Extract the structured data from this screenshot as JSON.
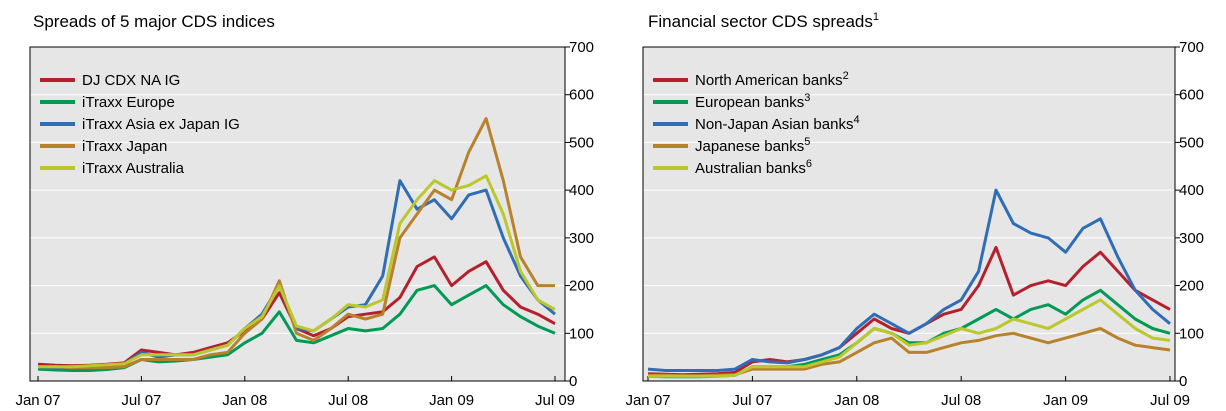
{
  "chart_data": [
    {
      "type": "line",
      "title": "Spreads of 5 major CDS indices",
      "x": [
        "2007-01",
        "2007-02",
        "2007-03",
        "2007-04",
        "2007-05",
        "2007-06",
        "2007-07",
        "2007-08",
        "2007-09",
        "2007-10",
        "2007-11",
        "2007-12",
        "2008-01",
        "2008-02",
        "2008-03",
        "2008-04",
        "2008-05",
        "2008-06",
        "2008-07",
        "2008-08",
        "2008-09",
        "2008-10",
        "2008-11",
        "2008-12",
        "2009-01",
        "2009-02",
        "2009-03",
        "2009-04",
        "2009-05",
        "2009-06",
        "2009-07"
      ],
      "xticks": [
        {
          "value": "2007-01",
          "label": "Jan 07"
        },
        {
          "value": "2007-07",
          "label": "Jul 07"
        },
        {
          "value": "2008-01",
          "label": "Jan 08"
        },
        {
          "value": "2008-07",
          "label": "Jul 08"
        },
        {
          "value": "2009-01",
          "label": "Jan 09"
        },
        {
          "value": "2009-07",
          "label": "Jul 09"
        }
      ],
      "ylim": [
        0,
        700
      ],
      "yticks": [
        0,
        100,
        200,
        300,
        400,
        500,
        600,
        700
      ],
      "grid": true,
      "legend": "upper left",
      "series": [
        {
          "name": "DJ CDX NA IG",
          "color": "#b5202e",
          "values": [
            35,
            33,
            32,
            33,
            35,
            38,
            65,
            60,
            55,
            60,
            70,
            80,
            105,
            130,
            185,
            110,
            95,
            110,
            135,
            140,
            145,
            175,
            240,
            260,
            200,
            230,
            250,
            190,
            155,
            140,
            120
          ]
        },
        {
          "name": "iTraxx Europe",
          "color": "#009a55",
          "values": [
            25,
            23,
            22,
            22,
            24,
            28,
            45,
            40,
            42,
            45,
            50,
            55,
            80,
            100,
            145,
            85,
            80,
            95,
            110,
            105,
            110,
            140,
            190,
            200,
            160,
            180,
            200,
            160,
            135,
            115,
            100
          ]
        },
        {
          "name": "iTraxx Asia ex Japan IG",
          "color": "#2f6db5",
          "values": [
            30,
            28,
            28,
            30,
            32,
            35,
            60,
            50,
            55,
            55,
            65,
            75,
            110,
            140,
            200,
            110,
            105,
            130,
            155,
            160,
            220,
            420,
            360,
            380,
            340,
            390,
            400,
            300,
            220,
            170,
            140
          ]
        },
        {
          "name": "iTraxx Japan",
          "color": "#b8812b",
          "values": [
            30,
            30,
            28,
            28,
            28,
            30,
            45,
            45,
            45,
            45,
            55,
            60,
            100,
            130,
            210,
            100,
            85,
            110,
            140,
            130,
            140,
            300,
            350,
            400,
            380,
            480,
            550,
            420,
            260,
            200,
            200
          ]
        },
        {
          "name": "iTraxx Australia",
          "color": "#bcc72b",
          "values": [
            30,
            30,
            30,
            32,
            34,
            36,
            55,
            55,
            55,
            55,
            65,
            75,
            110,
            135,
            200,
            115,
            105,
            130,
            160,
            155,
            170,
            330,
            380,
            420,
            400,
            410,
            430,
            350,
            230,
            170,
            150
          ]
        }
      ]
    },
    {
      "type": "line",
      "title": "Financial sector CDS spreads",
      "title_footnote": "1",
      "x": [
        "2007-01",
        "2007-02",
        "2007-03",
        "2007-04",
        "2007-05",
        "2007-06",
        "2007-07",
        "2007-08",
        "2007-09",
        "2007-10",
        "2007-11",
        "2007-12",
        "2008-01",
        "2008-02",
        "2008-03",
        "2008-04",
        "2008-05",
        "2008-06",
        "2008-07",
        "2008-08",
        "2008-09",
        "2008-10",
        "2008-11",
        "2008-12",
        "2009-01",
        "2009-02",
        "2009-03",
        "2009-04",
        "2009-05",
        "2009-06",
        "2009-07"
      ],
      "xticks": [
        {
          "value": "2007-01",
          "label": "Jan 07"
        },
        {
          "value": "2007-07",
          "label": "Jul 07"
        },
        {
          "value": "2008-01",
          "label": "Jan 08"
        },
        {
          "value": "2008-07",
          "label": "Jul 08"
        },
        {
          "value": "2009-01",
          "label": "Jan 09"
        },
        {
          "value": "2009-07",
          "label": "Jul 09"
        }
      ],
      "ylim": [
        0,
        700
      ],
      "yticks": [
        0,
        100,
        200,
        300,
        400,
        500,
        600,
        700
      ],
      "grid": true,
      "legend": "upper left",
      "series": [
        {
          "name": "North American banks",
          "footnote": "2",
          "color": "#b5202e",
          "values": [
            15,
            14,
            13,
            14,
            15,
            18,
            40,
            45,
            40,
            45,
            55,
            70,
            100,
            130,
            110,
            100,
            120,
            140,
            150,
            200,
            280,
            180,
            200,
            210,
            200,
            240,
            270,
            230,
            190,
            170,
            150
          ]
        },
        {
          "name": "European banks",
          "footnote": "3",
          "color": "#009a55",
          "values": [
            10,
            9,
            9,
            9,
            10,
            12,
            30,
            30,
            30,
            35,
            45,
            55,
            80,
            110,
            100,
            80,
            80,
            100,
            110,
            130,
            150,
            130,
            150,
            160,
            140,
            170,
            190,
            160,
            130,
            110,
            100
          ]
        },
        {
          "name": "Non-Japan Asian banks",
          "footnote": "4",
          "color": "#2f6db5",
          "values": [
            25,
            22,
            22,
            22,
            22,
            25,
            45,
            40,
            38,
            45,
            55,
            70,
            110,
            140,
            120,
            100,
            120,
            150,
            170,
            230,
            400,
            330,
            310,
            300,
            270,
            320,
            340,
            260,
            190,
            150,
            120
          ]
        },
        {
          "name": "Japanese banks",
          "footnote": "5",
          "color": "#b8812b",
          "values": [
            12,
            12,
            11,
            11,
            12,
            13,
            25,
            25,
            25,
            25,
            35,
            40,
            60,
            80,
            90,
            60,
            60,
            70,
            80,
            85,
            95,
            100,
            90,
            80,
            90,
            100,
            110,
            90,
            75,
            70,
            65
          ]
        },
        {
          "name": "Australian banks",
          "footnote": "6",
          "color": "#bcc72b",
          "values": [
            10,
            10,
            10,
            10,
            10,
            12,
            30,
            30,
            30,
            30,
            40,
            50,
            80,
            110,
            100,
            75,
            80,
            95,
            110,
            100,
            110,
            130,
            120,
            110,
            130,
            150,
            170,
            140,
            110,
            90,
            85
          ]
        }
      ]
    }
  ]
}
